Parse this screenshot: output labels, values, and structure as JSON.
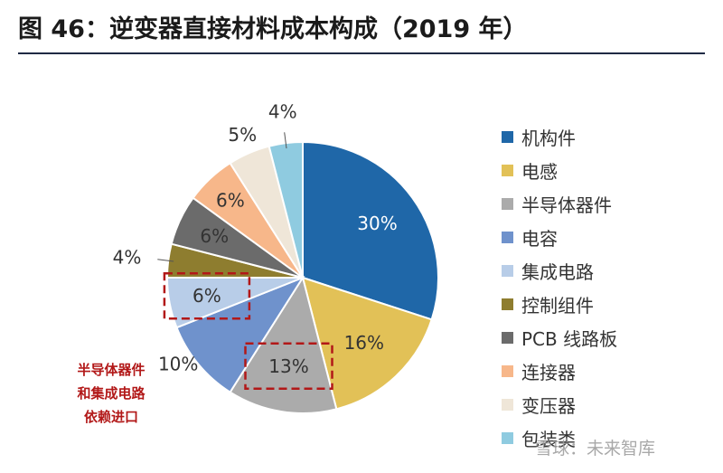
{
  "title": "图 46：逆变器直接材料成本构成（2019 年）",
  "chart_data": {
    "type": "pie",
    "series": [
      {
        "label": "机构件",
        "value": 30,
        "pct_label": "30%",
        "color": "#1f67a8"
      },
      {
        "label": "电感",
        "value": 16,
        "pct_label": "16%",
        "color": "#e2c157"
      },
      {
        "label": "半导体器件",
        "value": 13,
        "pct_label": "13%",
        "color": "#ababab"
      },
      {
        "label": "电容",
        "value": 10,
        "pct_label": "10%",
        "color": "#6f92cc"
      },
      {
        "label": "集成电路",
        "value": 6,
        "pct_label": "6%",
        "color": "#b8cde8"
      },
      {
        "label": "控制组件",
        "value": 4,
        "pct_label": "4%",
        "color": "#8e7d2f"
      },
      {
        "label": "PCB 线路板",
        "value": 6,
        "pct_label": "6%",
        "color": "#6b6b6b"
      },
      {
        "label": "连接器",
        "value": 6,
        "pct_label": "6%",
        "color": "#f7b78a"
      },
      {
        "label": "变压器",
        "value": 5,
        "pct_label": "5%",
        "color": "#efe6d8"
      },
      {
        "label": "包装类",
        "value": 4,
        "pct_label": "4%",
        "color": "#8fcbe0"
      }
    ],
    "highlighted": [
      "半导体器件",
      "集成电路"
    ],
    "legend_position": "right"
  },
  "annotation": {
    "lines": [
      "半导体器件",
      "和集成电路",
      "依赖进口"
    ],
    "color": "#b21818"
  },
  "watermark": "雪球：未来智库"
}
